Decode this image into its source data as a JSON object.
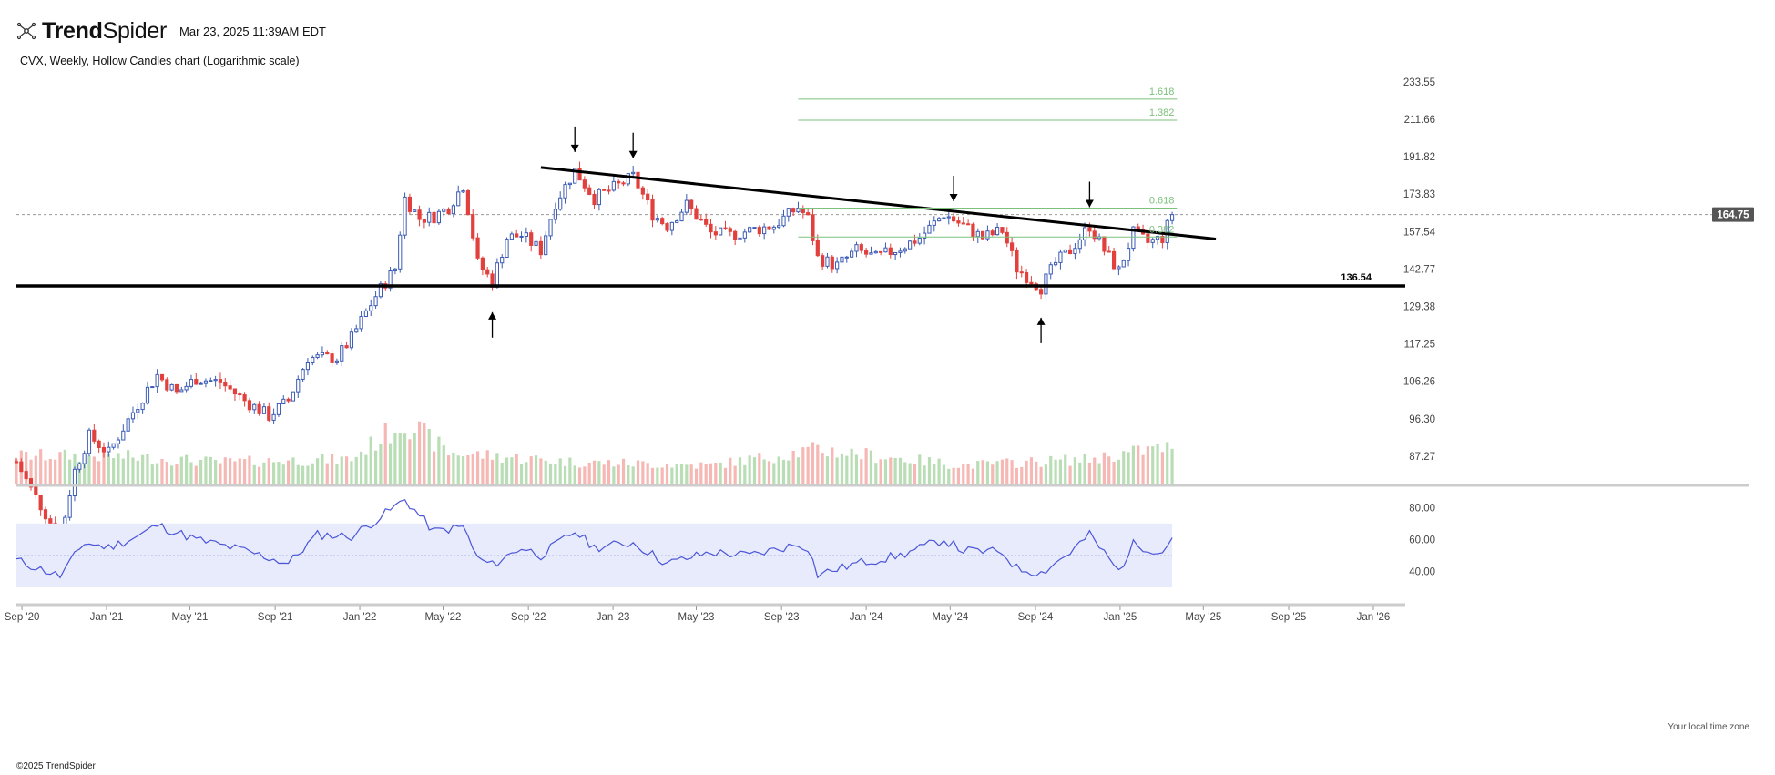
{
  "header": {
    "brand_bold": "Trend",
    "brand_light": "Spider",
    "timestamp": "Mar 23, 2025 11:39AM EDT",
    "subtitle": "CVX, Weekly, Hollow Candles chart (Logarithmic scale)",
    "copyright": "©2025 TrendSpider",
    "timezone_note": "Your local time zone"
  },
  "colors": {
    "up": "#3b5bb5",
    "down": "#e2403c",
    "vol_up": "#b9ddb5",
    "vol_down": "#f5b8b4",
    "rsi_line": "#4a55d8",
    "rsi_band": "#e8ebfb",
    "fib": "#7cc17c",
    "trendline": "#000000"
  },
  "chart_data": {
    "type": "candlestick",
    "symbol": "CVX",
    "interval": "Weekly",
    "scale": "log",
    "price_axis_ticks": [
      233.55,
      211.66,
      191.82,
      173.83,
      157.54,
      142.77,
      129.38,
      117.25,
      106.26,
      96.3,
      87.27
    ],
    "x_axis_ticks": [
      "Sep '20",
      "Jan '21",
      "May '21",
      "Sep '21",
      "Jan '22",
      "May '22",
      "Sep '22",
      "Jan '23",
      "May '23",
      "Sep '23",
      "Jan '24",
      "May '24",
      "Sep '24",
      "Jan '25",
      "May '25",
      "Sep '25",
      "Jan '26"
    ],
    "x_range": [
      "2020-08-24",
      "2026-02-16"
    ],
    "y_range": [
      81,
      245
    ],
    "last_price": "164.75",
    "support_level": "136.54",
    "support_line": {
      "from": "2020-08-24",
      "to": "2026-02-16",
      "price": 136.54
    },
    "resistance_trendline": {
      "from": {
        "date": "2022-09-19",
        "price": 186.5
      },
      "to": {
        "date": "2025-05-19",
        "price": 154.5
      }
    },
    "fib_levels": [
      {
        "label": "1.618",
        "price": 223.2,
        "from": "2023-09-25",
        "to": "2025-03-24"
      },
      {
        "label": "1.382",
        "price": 211.2,
        "from": "2023-09-25",
        "to": "2025-03-24"
      },
      {
        "label": "0.618",
        "price": 167.6,
        "from": "2023-09-25",
        "to": "2025-03-24"
      },
      {
        "label": "0.382",
        "price": 155.3,
        "from": "2023-09-25",
        "to": "2025-03-24"
      }
    ],
    "down_arrows": [
      "2022-11-07",
      "2023-01-30",
      "2024-05-06",
      "2024-11-18"
    ],
    "up_arrows": [
      "2022-07-11",
      "2024-09-09"
    ],
    "price_path": [
      [
        "2020-08-24",
        86
      ],
      [
        "2020-09-14",
        80
      ],
      [
        "2020-10-26",
        70
      ],
      [
        "2020-11-16",
        84
      ],
      [
        "2020-12-07",
        92
      ],
      [
        "2021-01-04",
        88
      ],
      [
        "2021-02-15",
        100
      ],
      [
        "2021-03-15",
        108
      ],
      [
        "2021-04-12",
        103
      ],
      [
        "2021-05-10",
        107
      ],
      [
        "2021-06-14",
        106
      ],
      [
        "2021-07-19",
        101
      ],
      [
        "2021-08-23",
        97
      ],
      [
        "2021-09-20",
        101
      ],
      [
        "2021-10-18",
        113
      ],
      [
        "2021-11-29",
        113
      ],
      [
        "2021-12-20",
        119
      ],
      [
        "2022-01-24",
        133
      ],
      [
        "2022-02-21",
        143
      ],
      [
        "2022-03-07",
        172
      ],
      [
        "2022-03-28",
        163
      ],
      [
        "2022-04-18",
        164
      ],
      [
        "2022-05-09",
        168
      ],
      [
        "2022-05-30",
        178
      ],
      [
        "2022-06-20",
        145
      ],
      [
        "2022-07-11",
        138
      ],
      [
        "2022-08-01",
        155
      ],
      [
        "2022-08-22",
        156
      ],
      [
        "2022-09-19",
        150
      ],
      [
        "2022-10-10",
        170
      ],
      [
        "2022-11-07",
        185
      ],
      [
        "2022-12-05",
        172
      ],
      [
        "2023-01-09",
        178
      ],
      [
        "2023-01-30",
        182
      ],
      [
        "2023-02-27",
        165
      ],
      [
        "2023-03-20",
        160
      ],
      [
        "2023-04-17",
        169
      ],
      [
        "2023-05-22",
        157
      ],
      [
        "2023-06-19",
        156
      ],
      [
        "2023-07-17",
        158
      ],
      [
        "2023-08-21",
        160
      ],
      [
        "2023-09-25",
        168
      ],
      [
        "2023-10-09",
        163
      ],
      [
        "2023-10-23",
        147
      ],
      [
        "2023-11-20",
        144
      ],
      [
        "2023-12-18",
        150
      ],
      [
        "2024-01-15",
        147
      ],
      [
        "2024-02-19",
        151
      ],
      [
        "2024-03-18",
        155
      ],
      [
        "2024-04-22",
        165
      ],
      [
        "2024-05-20",
        160
      ],
      [
        "2024-06-17",
        155
      ],
      [
        "2024-07-15",
        158
      ],
      [
        "2024-08-05",
        143
      ],
      [
        "2024-09-09",
        136
      ],
      [
        "2024-09-30",
        145
      ],
      [
        "2024-10-21",
        150
      ],
      [
        "2024-11-18",
        160
      ],
      [
        "2024-12-09",
        150
      ],
      [
        "2024-12-30",
        142
      ],
      [
        "2025-01-20",
        157
      ],
      [
        "2025-02-10",
        153
      ],
      [
        "2025-03-03",
        155
      ],
      [
        "2025-03-17",
        164.75
      ]
    ],
    "volume_relative_path": [
      [
        "2020-08-24",
        0.45
      ],
      [
        "2021-01-04",
        0.45
      ],
      [
        "2021-06-14",
        0.35
      ],
      [
        "2021-12-20",
        0.4
      ],
      [
        "2022-03-07",
        1.0
      ],
      [
        "2022-05-09",
        0.5
      ],
      [
        "2022-07-11",
        0.45
      ],
      [
        "2022-11-07",
        0.35
      ],
      [
        "2023-05-22",
        0.3
      ],
      [
        "2023-10-23",
        0.55
      ],
      [
        "2024-05-20",
        0.3
      ],
      [
        "2024-11-18",
        0.4
      ],
      [
        "2025-03-17",
        0.6
      ]
    ],
    "rsi": {
      "y_ticks": [
        80.0,
        60.0,
        40.0
      ],
      "y_range": [
        30,
        87
      ],
      "band": [
        30,
        70
      ],
      "midline": 50,
      "path": [
        [
          "2020-08-24",
          47
        ],
        [
          "2020-10-26",
          37
        ],
        [
          "2020-11-30",
          58
        ],
        [
          "2021-01-04",
          55
        ],
        [
          "2021-02-15",
          62
        ],
        [
          "2021-03-15",
          69
        ],
        [
          "2021-05-10",
          60
        ],
        [
          "2021-07-19",
          53
        ],
        [
          "2021-09-20",
          45
        ],
        [
          "2021-11-01",
          63
        ],
        [
          "2021-12-20",
          62
        ],
        [
          "2022-01-24",
          72
        ],
        [
          "2022-03-07",
          85
        ],
        [
          "2022-04-18",
          65
        ],
        [
          "2022-05-30",
          68
        ],
        [
          "2022-06-20",
          48
        ],
        [
          "2022-07-11",
          44
        ],
        [
          "2022-08-22",
          55
        ],
        [
          "2022-09-19",
          50
        ],
        [
          "2022-11-07",
          65
        ],
        [
          "2022-12-05",
          55
        ],
        [
          "2023-01-30",
          58
        ],
        [
          "2023-03-20",
          45
        ],
        [
          "2023-05-22",
          52
        ],
        [
          "2023-07-17",
          50
        ],
        [
          "2023-09-25",
          57
        ],
        [
          "2023-10-09",
          55
        ],
        [
          "2023-10-23",
          38
        ],
        [
          "2023-12-18",
          45
        ],
        [
          "2024-02-19",
          50
        ],
        [
          "2024-04-22",
          60
        ],
        [
          "2024-05-20",
          53
        ],
        [
          "2024-07-15",
          52
        ],
        [
          "2024-08-05",
          42
        ],
        [
          "2024-09-09",
          39
        ],
        [
          "2024-10-21",
          52
        ],
        [
          "2024-11-18",
          63
        ],
        [
          "2024-12-30",
          40
        ],
        [
          "2025-01-20",
          57
        ],
        [
          "2025-03-03",
          52
        ],
        [
          "2025-03-17",
          61
        ]
      ]
    }
  }
}
